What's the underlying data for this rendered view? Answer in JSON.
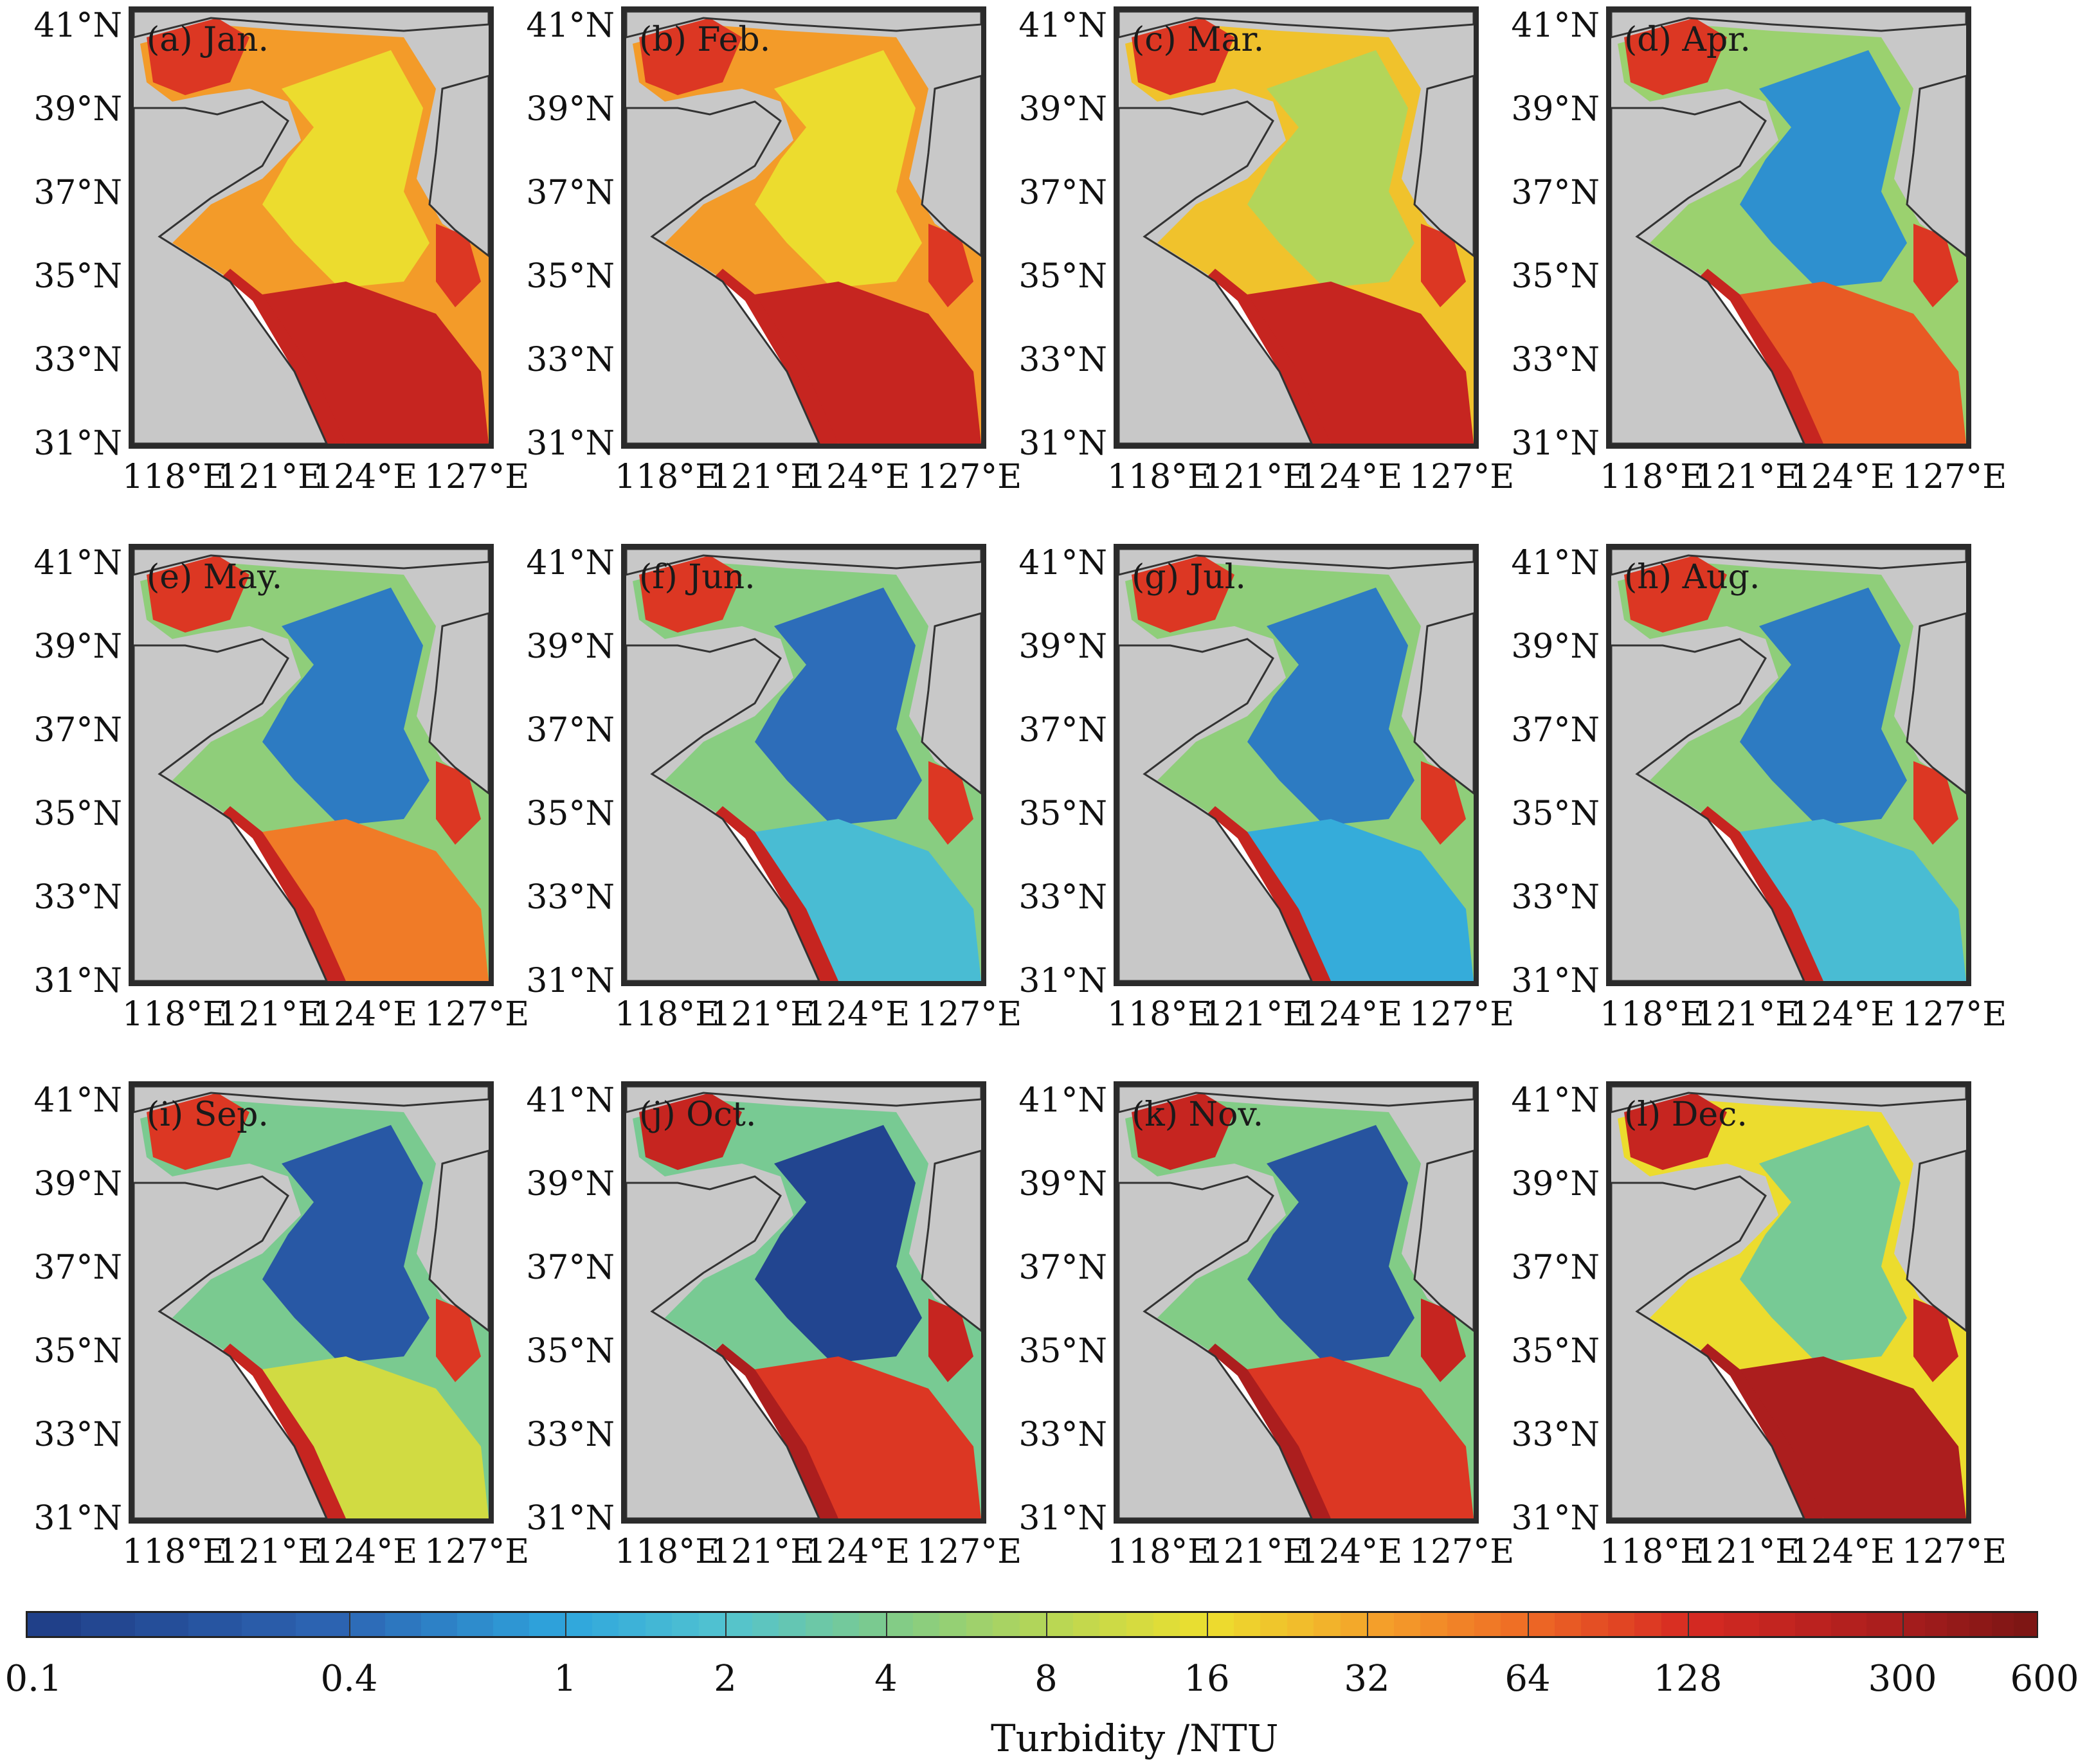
{
  "lat_labels": [
    "41°N",
    "39°N",
    "37°N",
    "35°N",
    "33°N",
    "31°N"
  ],
  "lon_labels": [
    "118°E",
    "121°E",
    "124°E",
    "127°E"
  ],
  "panels": [
    {
      "label": "(a) Jan.",
      "offshore_level": 0.55,
      "south_level": 0.85,
      "coast_level": 0.8
    },
    {
      "label": "(b) Feb.",
      "offshore_level": 0.55,
      "south_level": 0.85,
      "coast_level": 0.8
    },
    {
      "label": "(c) Mar.",
      "offshore_level": 0.45,
      "south_level": 0.85,
      "coast_level": 0.8
    },
    {
      "label": "(d) Apr.",
      "offshore_level": 0.15,
      "south_level": 0.75,
      "coast_level": 0.8
    },
    {
      "label": "(e) May.",
      "offshore_level": 0.12,
      "south_level": 0.7,
      "coast_level": 0.8
    },
    {
      "label": "(f) Jun.",
      "offshore_level": 0.1,
      "south_level": 0.25,
      "coast_level": 0.8
    },
    {
      "label": "(g) Jul.",
      "offshore_level": 0.12,
      "south_level": 0.2,
      "coast_level": 0.8
    },
    {
      "label": "(h) Aug.",
      "offshore_level": 0.12,
      "south_level": 0.25,
      "coast_level": 0.8
    },
    {
      "label": "(i) Sep.",
      "offshore_level": 0.06,
      "south_level": 0.5,
      "coast_level": 0.8
    },
    {
      "label": "(j) Oct.",
      "offshore_level": 0.02,
      "south_level": 0.8,
      "coast_level": 0.85
    },
    {
      "label": "(k) Nov.",
      "offshore_level": 0.05,
      "south_level": 0.8,
      "coast_level": 0.85
    },
    {
      "label": "(l) Dec.",
      "offshore_level": 0.35,
      "south_level": 0.9,
      "coast_level": 0.85
    }
  ],
  "colorbar": {
    "title": "Turbidity /NTU",
    "tick_labels": [
      "0.1",
      "0.4",
      "1",
      "2",
      "4",
      "8",
      "16",
      "32",
      "64",
      "128",
      "300",
      "600"
    ],
    "colors": [
      "#1f3c85",
      "#2d67b5",
      "#2ea6dd",
      "#52c3d0",
      "#7ecb8a",
      "#b6d656",
      "#ecdf2e",
      "#f4a42a",
      "#ee6a25",
      "#d72a22",
      "#a71d1d",
      "#7a1513"
    ],
    "land_color": "#c8c8c8",
    "no_data_color": "#ffffff"
  }
}
